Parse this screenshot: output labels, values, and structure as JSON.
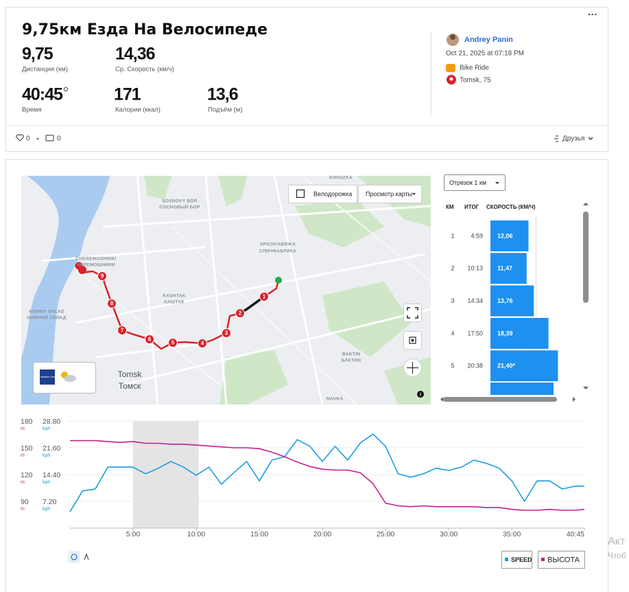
{
  "header": {
    "title": "9,75км Езда На Велосипеде"
  },
  "stats": [
    {
      "value": "9,75",
      "label": "Дистанция (км)"
    },
    {
      "value": "14,36",
      "label": "Ср. Скорость (км/ч)"
    },
    {
      "value": "40:45",
      "label": "Время"
    },
    {
      "value": "171",
      "label": "Калории (ккал)"
    },
    {
      "value": "13,6",
      "label": "Подъём (м)"
    }
  ],
  "athlete": {
    "name": "Andrey Panin",
    "date": "Oct 21, 2025 at 07:18 PM",
    "sport": "Bike Ride",
    "location": "Tomsk, 75"
  },
  "social": {
    "kudos": "0",
    "comments": "0",
    "visibility": "Друзья"
  },
  "map": {
    "bike_lanes": "Велодорожка",
    "view": "Просмотр карты",
    "weather": "The Weather Channel",
    "places": [
      "KIRGIZKA",
      "SOSNOVY BOR",
      "СОСНОВЫЙ БОР",
      "SPICHFABRIKA",
      "СПИЧФАБРИКА",
      "CHEREMOSHNIKI",
      "ЧЕРЕМОШНИКИ",
      "KASHTAK",
      "КАШТАК",
      "NIZHNY SKLAD",
      "НИЖНИЙ СКЛАД",
      "Tomsk",
      "Томск",
      "BAKTIN",
      "БАКТИН",
      "NAUKA"
    ],
    "markers": [
      "1",
      "2",
      "3",
      "4",
      "5",
      "6",
      "7",
      "8",
      "9"
    ]
  },
  "splits": {
    "selector": "Отрезок 1 км",
    "columns": [
      "КМ",
      "ИТОГ",
      "СКОРОСТЬ (КМ/Ч)"
    ],
    "rows": [
      {
        "km": "1",
        "total": "4:59",
        "speed": 12.06,
        "speed_label": "12,06"
      },
      {
        "km": "2",
        "total": "10:13",
        "speed": 11.47,
        "speed_label": "11,47"
      },
      {
        "km": "3",
        "total": "14:34",
        "speed": 13.76,
        "speed_label": "13,76"
      },
      {
        "km": "4",
        "total": "17:50",
        "speed": 18.39,
        "speed_label": "18,39"
      },
      {
        "km": "5",
        "total": "20:38",
        "speed": 21.4,
        "speed_label": "21,40*"
      }
    ]
  },
  "chart_data": {
    "type": "line",
    "x": [
      0,
      1,
      2,
      3,
      4,
      5,
      6,
      7,
      8,
      9,
      10,
      11,
      12,
      13,
      14,
      15,
      16,
      17,
      18,
      19,
      20,
      21,
      22,
      23,
      24,
      25,
      26,
      27,
      28,
      29,
      30,
      31,
      32,
      33,
      34,
      35,
      36,
      37,
      38,
      39,
      40,
      40.75
    ],
    "xlim": [
      0,
      40.75
    ],
    "xticks": [
      {
        "value": 5,
        "label": "5:00"
      },
      {
        "value": 10,
        "label": "10:00"
      },
      {
        "value": 15,
        "label": "15:00"
      },
      {
        "value": 20,
        "label": "20:00"
      },
      {
        "value": 25,
        "label": "25:00"
      },
      {
        "value": 30,
        "label": "30:00"
      },
      {
        "value": 35,
        "label": "35:00"
      },
      {
        "value": 40.75,
        "label": "40:45"
      }
    ],
    "ylim": [
      60,
      180
    ],
    "yticks": [
      90,
      120,
      150,
      180
    ],
    "y_unit": "m",
    "y2lim": [
      0,
      28.8
    ],
    "y2ticks": [
      {
        "value": 7.2,
        "label": "7.20"
      },
      {
        "value": 14.4,
        "label": "14.40"
      },
      {
        "value": 21.6,
        "label": "21.60"
      },
      {
        "value": 28.8,
        "label": "28.80"
      }
    ],
    "y2_unit": "kph",
    "highlight": [
      5,
      10.2
    ],
    "grid": true,
    "series": [
      {
        "name": "SPEED",
        "color": "#1a9ee0",
        "axis": "y2",
        "values": [
          4.4,
          10.0,
          10.5,
          16.4,
          16.4,
          16.4,
          14.6,
          16.1,
          17.9,
          16.4,
          14.2,
          16.4,
          11.8,
          15.0,
          17.9,
          12.7,
          18.3,
          19.2,
          23.8,
          22.0,
          17.9,
          22.0,
          18.3,
          22.9,
          25.3,
          22.0,
          14.6,
          13.7,
          14.6,
          16.1,
          15.5,
          16.4,
          18.3,
          17.4,
          16.1,
          12.7,
          7.2,
          12.7,
          12.7,
          10.5,
          11.3,
          11.3
        ]
      },
      {
        "name": "ВЫСОТА",
        "color": "#c0208a",
        "values": [
          158,
          158,
          158,
          157,
          156,
          157,
          155,
          155,
          154,
          154,
          153,
          152,
          151,
          150,
          150,
          149,
          145,
          140,
          134,
          129,
          126,
          125,
          125,
          122,
          110,
          88,
          85,
          84,
          85,
          84,
          84,
          84,
          84,
          83,
          83,
          81,
          80,
          80,
          81,
          80,
          80,
          81
        ]
      }
    ]
  },
  "watermark": [
    "Акт",
    "Чтоб"
  ]
}
